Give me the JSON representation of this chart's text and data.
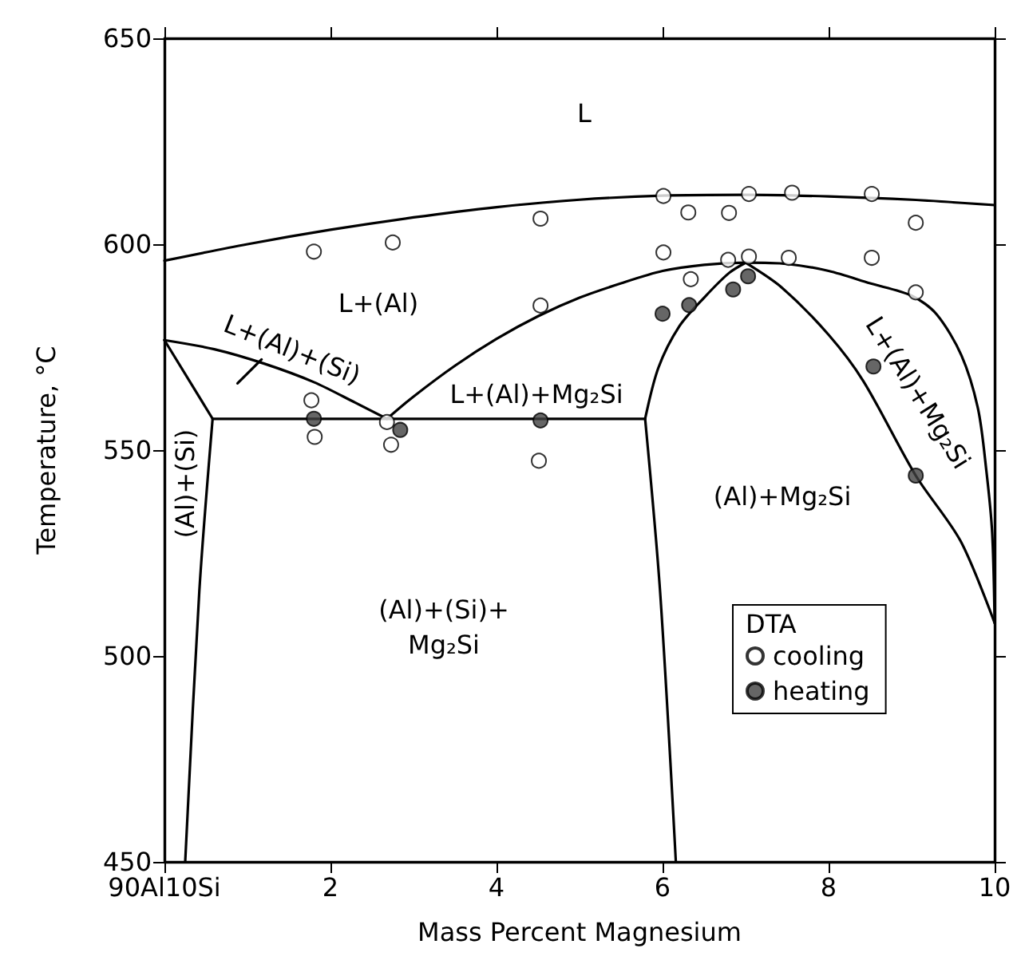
{
  "chart_data": {
    "type": "scatter",
    "xlabel": "Mass Percent Magnesium",
    "ylabel": "Temperature, °C",
    "legend_title": "DTA",
    "legend": "bottom right",
    "grid": false,
    "xlim": [
      0,
      10
    ],
    "xticks": [
      {
        "value": 0,
        "label": "90Al10Si"
      },
      2,
      4,
      6,
      8,
      10
    ],
    "ylim": [
      450,
      650
    ],
    "yticks": [
      450,
      500,
      550,
      600,
      650
    ],
    "series": [
      {
        "type": "line",
        "color": "#000000",
        "x": [
          0,
          1,
          2,
          3,
          4,
          5,
          6,
          7,
          8,
          9,
          10
        ],
        "values": [
          596,
          600,
          603.5,
          606.5,
          609,
          610.8,
          611.8,
          612,
          611.6,
          610.8,
          609.5
        ]
      },
      {
        "type": "line",
        "color": "#000000",
        "x": [
          2.68,
          3,
          3.5,
          4,
          4.5,
          5,
          5.5,
          6,
          6.5,
          7,
          7.5,
          8,
          8.5,
          9,
          9.3,
          9.6,
          9.8,
          9.9,
          9.97,
          10
        ],
        "values": [
          557.6,
          563,
          570.5,
          577,
          582.5,
          587,
          590.5,
          593.5,
          595,
          595.5,
          595.2,
          593.5,
          590.5,
          587.5,
          583,
          573,
          560,
          545,
          530,
          508
        ]
      },
      {
        "type": "line",
        "color": "#000000",
        "x": [
          7,
          7.44,
          8,
          8.42,
          9.05,
          9.59,
          10
        ],
        "values": [
          595.5,
          589.4,
          578,
          566.7,
          543.8,
          527.9,
          508
        ]
      },
      {
        "type": "line",
        "color": "#000000",
        "x": [
          5.79,
          5.95,
          6.2,
          6.5,
          6.8,
          7
        ],
        "values": [
          557.6,
          570,
          580,
          587,
          593,
          595.5
        ]
      },
      {
        "type": "line",
        "color": "#000000",
        "x": [
          0.58,
          5.79
        ],
        "values": [
          557.6,
          557.6
        ]
      },
      {
        "type": "line",
        "color": "#000000",
        "x": [
          5.79,
          5.97,
          6.16
        ],
        "values": [
          557.6,
          515.7,
          450
        ]
      },
      {
        "type": "line",
        "color": "#000000",
        "x": [
          0,
          0.6,
          1.2,
          1.8,
          2.3,
          2.68
        ],
        "values": [
          576.7,
          574.5,
          571,
          566.5,
          561.5,
          557.6
        ]
      },
      {
        "type": "line",
        "color": "#000000",
        "x": [
          0,
          0.58
        ],
        "values": [
          576.7,
          557.6
        ]
      },
      {
        "type": "line",
        "color": "#000000",
        "x": [
          0.58,
          0.42,
          0.25
        ],
        "values": [
          557.6,
          515.7,
          450
        ]
      },
      {
        "type": "line",
        "color": "#000000",
        "x": [
          0.88,
          1.17
        ],
        "values": [
          566.2,
          572
        ]
      },
      {
        "name": "cooling",
        "marker": "circle",
        "color": "#ffffff",
        "x": [
          1.8,
          2.75,
          4.53,
          6.01,
          6.31,
          6.8,
          7.04,
          7.56,
          8.52,
          9.05,
          6.01,
          6.79,
          7.04,
          7.52,
          8.52,
          6.34,
          9.05,
          4.53,
          1.77,
          1.81,
          2.68,
          2.73,
          4.51
        ],
        "values": [
          598.2,
          600.4,
          606.2,
          611.7,
          607.7,
          607.6,
          612.2,
          612.5,
          612.2,
          605.2,
          598,
          596.2,
          597,
          596.7,
          596.7,
          591.5,
          588.3,
          585.1,
          562.1,
          553.2,
          556.8,
          551.3,
          547.4
        ]
      },
      {
        "name": "heating",
        "marker": "circle",
        "color": "#404040",
        "x": [
          1.8,
          2.84,
          4.53,
          6.0,
          6.32,
          6.85,
          7.03,
          8.54,
          9.05
        ],
        "values": [
          557.6,
          554.9,
          557.2,
          583.1,
          585.2,
          589,
          592.2,
          570.3,
          543.8
        ]
      }
    ],
    "annotations": [
      "L",
      "L+(Al)",
      "L+(Al)+(Si)",
      "L+(Al)+Mg₂Si",
      "(Al)+(Si)",
      "(Al)+(Si)+\nMg₂Si",
      "(Al)+Mg₂Si",
      "L+(Al)+Mg₂Si"
    ]
  }
}
